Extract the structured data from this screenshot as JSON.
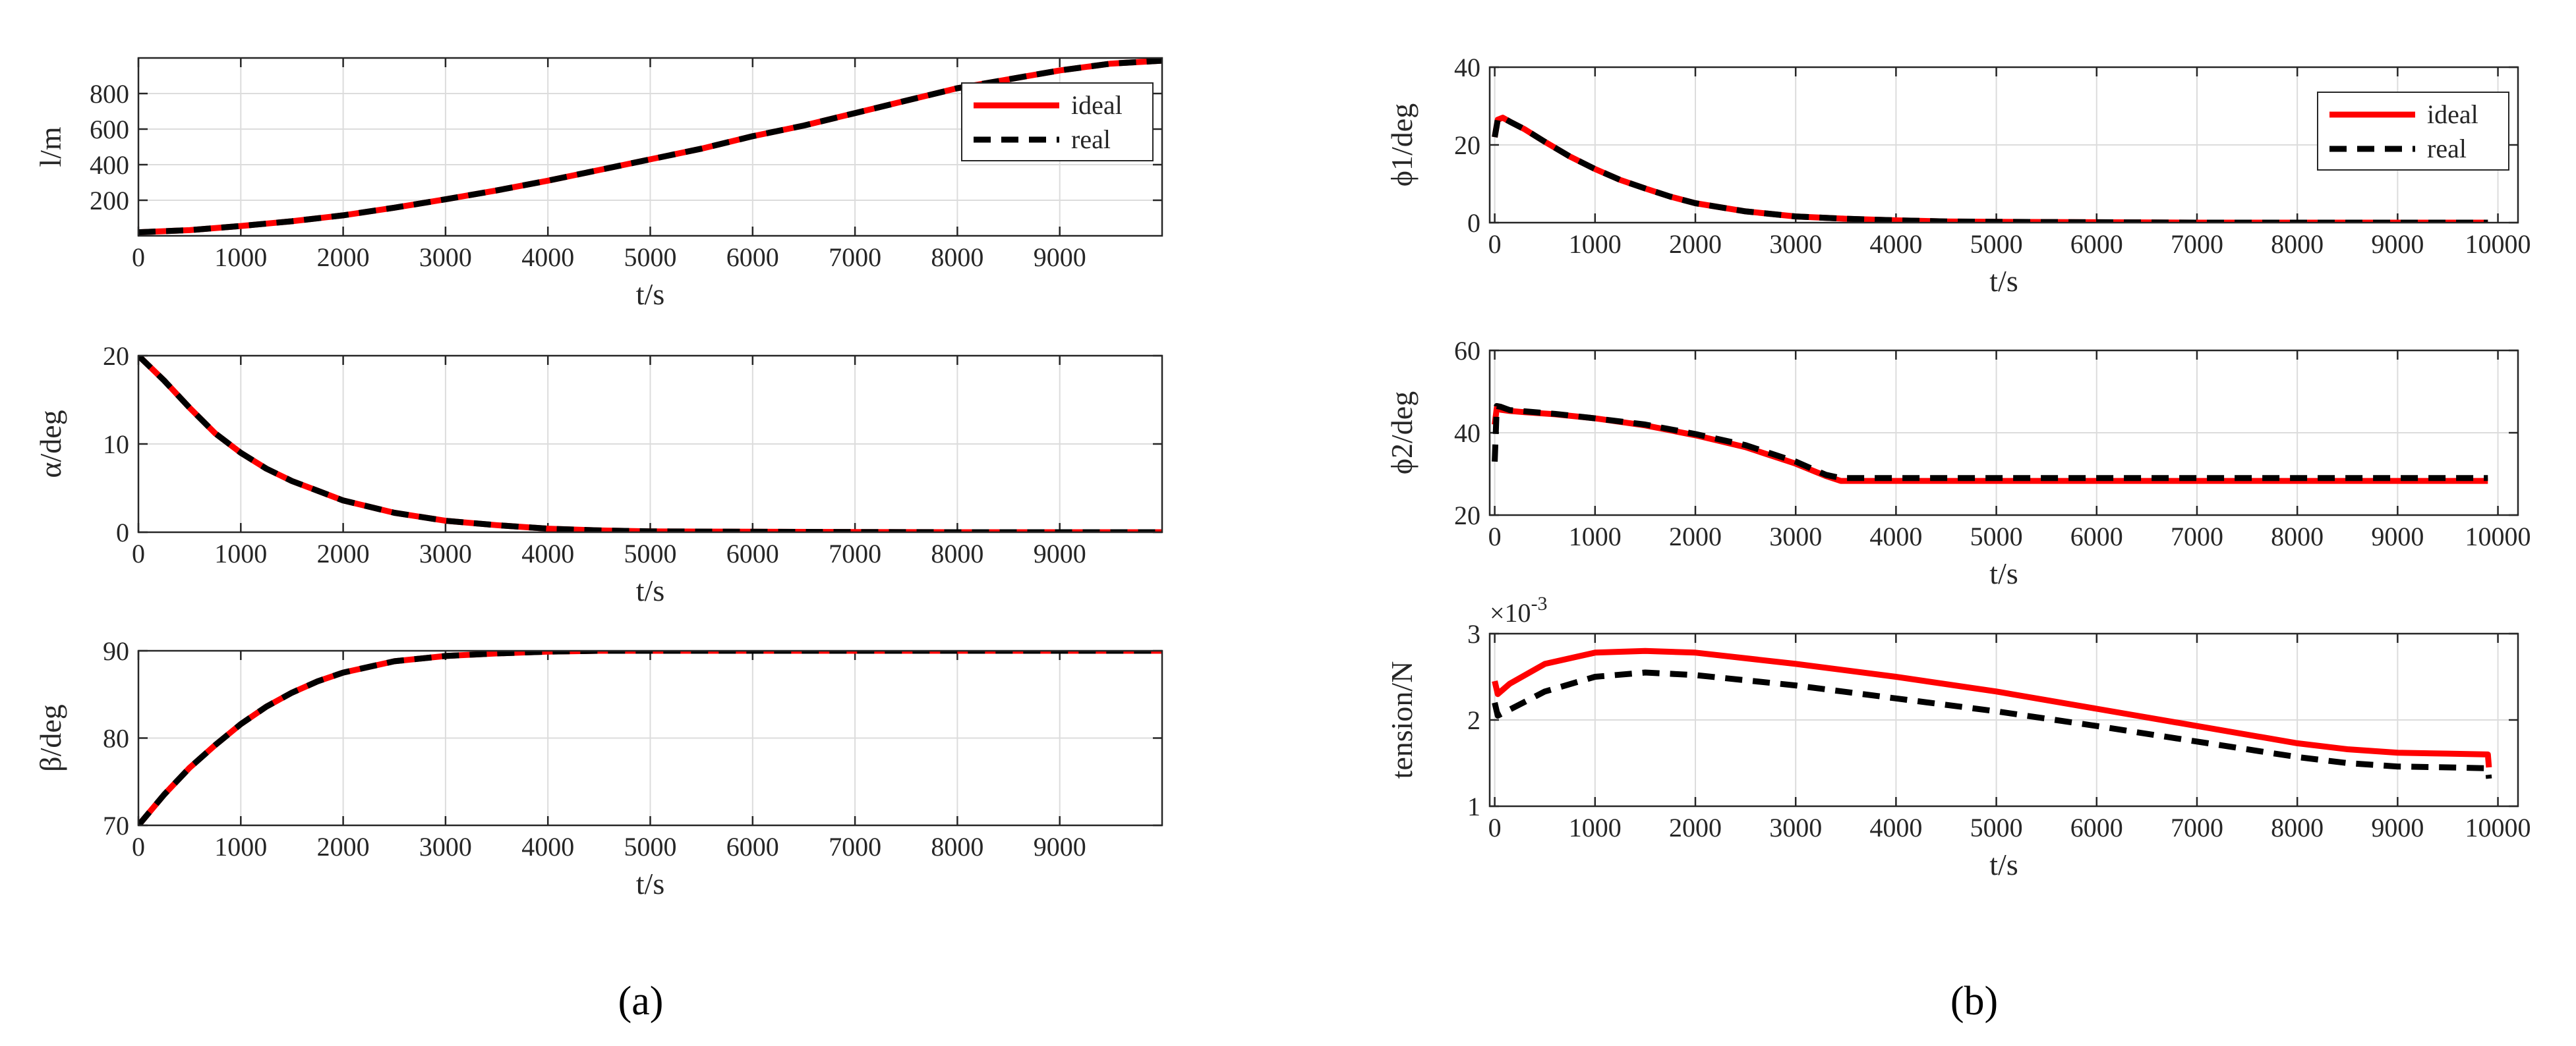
{
  "figure": {
    "panels": [
      {
        "label": "(a)",
        "letter": "a"
      },
      {
        "label": "(b)",
        "letter": "b"
      }
    ]
  },
  "chart_data": [
    {
      "type": "line",
      "id": "l",
      "panel": "a",
      "ylabel": "l/m",
      "xlabel": "t/s",
      "xlim": [
        0,
        10000
      ],
      "ylim": [
        0,
        1000
      ],
      "xticks": [
        0,
        1000,
        2000,
        3000,
        4000,
        5000,
        6000,
        7000,
        8000,
        9000
      ],
      "yticks": [
        200,
        400,
        600,
        800
      ],
      "legend": {
        "placement": "top-right",
        "entries": [
          "ideal",
          "real"
        ]
      },
      "series": [
        {
          "name": "ideal",
          "color": "#ff0000",
          "style": "solid",
          "x": [
            0,
            500,
            1000,
            1500,
            2000,
            2500,
            3000,
            3500,
            4000,
            4500,
            5000,
            5500,
            6000,
            6500,
            7000,
            7500,
            8000,
            8500,
            9000,
            9500,
            10000
          ],
          "y": [
            20,
            32,
            55,
            82,
            115,
            158,
            205,
            255,
            310,
            370,
            430,
            490,
            560,
            620,
            690,
            760,
            830,
            880,
            930,
            968,
            985
          ]
        },
        {
          "name": "real",
          "color": "#000000",
          "style": "dashed",
          "x": [
            0,
            500,
            1000,
            1500,
            2000,
            2500,
            3000,
            3500,
            4000,
            4500,
            5000,
            5500,
            6000,
            6500,
            7000,
            7500,
            8000,
            8500,
            9000,
            9500,
            10000
          ],
          "y": [
            20,
            32,
            55,
            82,
            115,
            158,
            205,
            255,
            310,
            370,
            430,
            490,
            560,
            620,
            690,
            760,
            830,
            880,
            930,
            968,
            985
          ]
        }
      ]
    },
    {
      "type": "line",
      "id": "alpha",
      "panel": "a",
      "ylabel": "α/deg",
      "xlabel": "t/s",
      "xlim": [
        0,
        10000
      ],
      "ylim": [
        0,
        20
      ],
      "xticks": [
        0,
        1000,
        2000,
        3000,
        4000,
        5000,
        6000,
        7000,
        8000,
        9000
      ],
      "yticks": [
        0,
        10,
        20
      ],
      "series": [
        {
          "name": "ideal",
          "color": "#ff0000",
          "style": "solid",
          "x": [
            0,
            250,
            500,
            750,
            1000,
            1250,
            1500,
            1750,
            2000,
            2500,
            3000,
            3500,
            4000,
            4500,
            5000,
            6000,
            7000,
            8000,
            9000,
            10000
          ],
          "y": [
            20,
            17.2,
            14.1,
            11.2,
            9.0,
            7.2,
            5.8,
            4.7,
            3.6,
            2.2,
            1.3,
            0.8,
            0.4,
            0.2,
            0.1,
            0.05,
            0.02,
            0,
            0,
            0
          ]
        },
        {
          "name": "real",
          "color": "#000000",
          "style": "dashed",
          "x": [
            0,
            250,
            500,
            750,
            1000,
            1250,
            1500,
            1750,
            2000,
            2500,
            3000,
            3500,
            4000,
            4500,
            5000,
            6000,
            7000,
            8000,
            9000,
            10000
          ],
          "y": [
            20,
            17.2,
            14.1,
            11.2,
            9.0,
            7.2,
            5.8,
            4.7,
            3.6,
            2.2,
            1.3,
            0.8,
            0.4,
            0.2,
            0.1,
            0.05,
            0.02,
            0,
            0,
            0
          ]
        }
      ]
    },
    {
      "type": "line",
      "id": "beta",
      "panel": "a",
      "ylabel": "β/deg",
      "xlabel": "t/s",
      "xlim": [
        0,
        10000
      ],
      "ylim": [
        70,
        90
      ],
      "xticks": [
        0,
        1000,
        2000,
        3000,
        4000,
        5000,
        6000,
        7000,
        8000,
        9000
      ],
      "yticks": [
        70,
        80,
        90
      ],
      "series": [
        {
          "name": "ideal",
          "color": "#ff0000",
          "style": "solid",
          "x": [
            0,
            250,
            500,
            750,
            1000,
            1250,
            1500,
            1750,
            2000,
            2500,
            3000,
            3500,
            4000,
            4500,
            5000,
            6000,
            7000,
            8000,
            9000,
            10000
          ],
          "y": [
            70,
            73.5,
            76.6,
            79.2,
            81.6,
            83.6,
            85.2,
            86.5,
            87.5,
            88.8,
            89.4,
            89.7,
            89.9,
            90,
            90,
            90,
            90,
            90,
            90,
            90
          ]
        },
        {
          "name": "real",
          "color": "#000000",
          "style": "dashed",
          "x": [
            0,
            250,
            500,
            750,
            1000,
            1250,
            1500,
            1750,
            2000,
            2500,
            3000,
            3500,
            4000,
            4500,
            5000,
            6000,
            7000,
            8000,
            9000,
            10000
          ],
          "y": [
            70,
            73.5,
            76.6,
            79.2,
            81.6,
            83.6,
            85.2,
            86.5,
            87.5,
            88.8,
            89.4,
            89.7,
            89.9,
            90,
            90,
            90,
            90,
            90,
            90,
            90
          ]
        }
      ]
    },
    {
      "type": "line",
      "id": "phi1",
      "panel": "b",
      "ylabel": "ϕ1/deg",
      "xlabel": "t/s",
      "xlim": [
        -50,
        10200
      ],
      "ylim": [
        0,
        40
      ],
      "xticks": [
        0,
        1000,
        2000,
        3000,
        4000,
        5000,
        6000,
        7000,
        8000,
        9000,
        10000
      ],
      "yticks": [
        0,
        20,
        40
      ],
      "legend": {
        "placement": "top-right",
        "entries": [
          "ideal",
          "real"
        ]
      },
      "series": [
        {
          "name": "ideal",
          "color": "#ff0000",
          "style": "solid",
          "x": [
            0,
            30,
            80,
            150,
            300,
            500,
            750,
            1000,
            1250,
            1500,
            1750,
            2000,
            2500,
            3000,
            3500,
            4000,
            4500,
            5000,
            6000,
            7000,
            8000,
            9000,
            9900
          ],
          "y": [
            22,
            26.5,
            27,
            26,
            24,
            20.8,
            17,
            13.8,
            11,
            8.8,
            6.7,
            5.0,
            2.9,
            1.6,
            1.0,
            0.6,
            0.3,
            0.2,
            0.1,
            0,
            0,
            0,
            0
          ]
        },
        {
          "name": "real",
          "color": "#000000",
          "style": "dashed",
          "x": [
            0,
            30,
            80,
            150,
            300,
            500,
            750,
            1000,
            1250,
            1500,
            1750,
            2000,
            2500,
            3000,
            3500,
            4000,
            4500,
            5000,
            6000,
            7000,
            8000,
            9000,
            9900
          ],
          "y": [
            22,
            26.5,
            27,
            26,
            24,
            20.8,
            17,
            13.8,
            11,
            8.8,
            6.7,
            5.0,
            2.9,
            1.6,
            1.0,
            0.6,
            0.3,
            0.2,
            0.1,
            0,
            0,
            0,
            0
          ]
        }
      ]
    },
    {
      "type": "line",
      "id": "phi2",
      "panel": "b",
      "ylabel": "ϕ2/deg",
      "xlabel": "t/s",
      "xlim": [
        -50,
        10200
      ],
      "ylim": [
        20,
        60
      ],
      "xticks": [
        0,
        1000,
        2000,
        3000,
        4000,
        5000,
        6000,
        7000,
        8000,
        9000,
        10000
      ],
      "yticks": [
        20,
        40,
        60
      ],
      "series": [
        {
          "name": "ideal",
          "color": "#ff0000",
          "style": "solid",
          "x": [
            0,
            20,
            60,
            150,
            300,
            600,
            1000,
            1500,
            2000,
            2500,
            3000,
            3300,
            3450,
            4000,
            5000,
            6000,
            7000,
            8000,
            9000,
            9900
          ],
          "y": [
            42,
            46,
            45.6,
            45.3,
            45,
            44.5,
            43.5,
            41.8,
            39.4,
            36.5,
            32.5,
            29.5,
            28.3,
            28.3,
            28.3,
            28.3,
            28.3,
            28.3,
            28.3,
            28.3
          ]
        },
        {
          "name": "real",
          "color": "#000000",
          "style": "dashed",
          "x": [
            0,
            20,
            60,
            150,
            300,
            600,
            1000,
            1500,
            2000,
            2500,
            3000,
            3300,
            3450,
            4000,
            5000,
            6000,
            7000,
            8000,
            9000,
            9900
          ],
          "y": [
            33,
            46.5,
            46.3,
            45.5,
            45.2,
            44.6,
            43.5,
            42,
            39.7,
            37,
            33,
            29.8,
            29,
            29,
            29,
            29,
            29,
            29,
            29,
            29
          ]
        }
      ]
    },
    {
      "type": "line",
      "id": "tension",
      "panel": "b",
      "ylabel": "tension/N",
      "xlabel": "t/s",
      "multiplier": "×10",
      "multiplier_exponent": "-3",
      "xlim": [
        -50,
        10200
      ],
      "ylim": [
        1,
        3
      ],
      "xticks": [
        0,
        1000,
        2000,
        3000,
        4000,
        5000,
        6000,
        7000,
        8000,
        9000,
        10000
      ],
      "yticks": [
        1,
        2,
        3
      ],
      "series": [
        {
          "name": "ideal",
          "color": "#ff0000",
          "style": "solid",
          "x": [
            0,
            30,
            150,
            500,
            1000,
            1500,
            2000,
            3000,
            4000,
            5000,
            6000,
            7000,
            8000,
            8500,
            9000,
            9500,
            9900,
            9910
          ],
          "y": [
            2.45,
            2.3,
            2.42,
            2.65,
            2.78,
            2.8,
            2.78,
            2.65,
            2.5,
            2.33,
            2.13,
            1.93,
            1.73,
            1.66,
            1.62,
            1.61,
            1.6,
            1.45
          ]
        },
        {
          "name": "real",
          "color": "#000000",
          "style": "dashed",
          "x": [
            0,
            30,
            150,
            500,
            1000,
            1500,
            2000,
            3000,
            4000,
            5000,
            6000,
            7000,
            8000,
            8500,
            9000,
            9500,
            9900,
            9910
          ],
          "y": [
            2.2,
            2.05,
            2.12,
            2.33,
            2.5,
            2.55,
            2.52,
            2.4,
            2.25,
            2.1,
            1.93,
            1.75,
            1.57,
            1.5,
            1.46,
            1.45,
            1.44,
            1.32
          ]
        }
      ]
    }
  ]
}
